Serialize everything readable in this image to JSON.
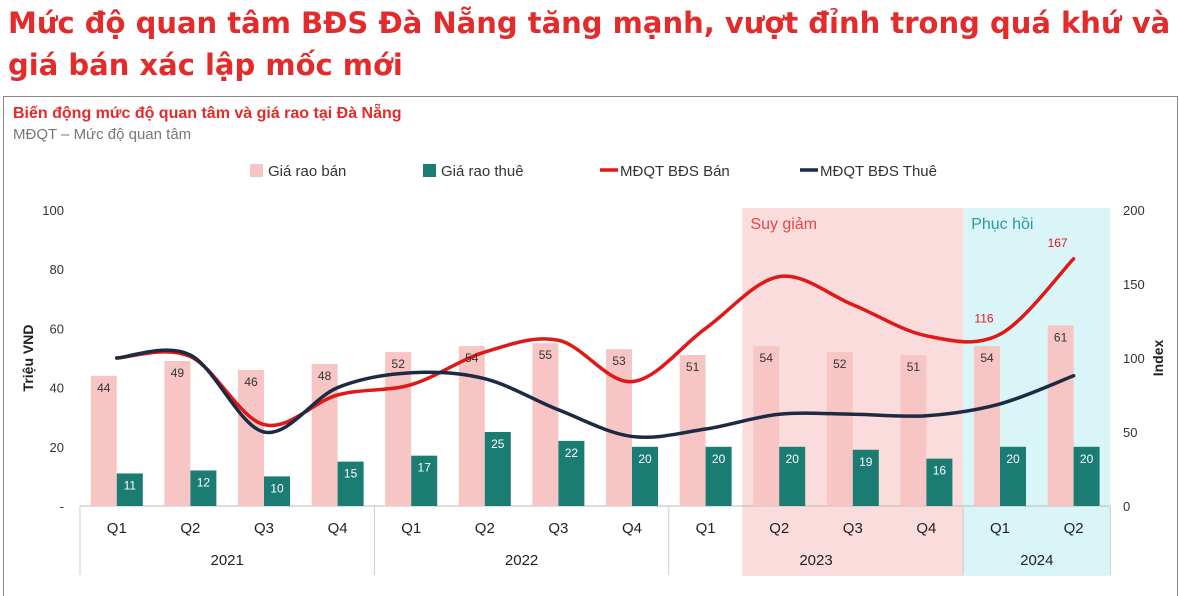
{
  "headline": "Mức độ quan tâm BĐS Đà Nẵng tăng mạnh, vượt đỉnh trong quá khứ và giá bán xác lập mốc mới",
  "chart_title": "Biến động mức độ quan tâm và giá rao tại Đà Nẵng",
  "chart_caption": "MĐQT – Mức độ quan tâm",
  "colors": {
    "sale_bar": "#f7c5c3",
    "rent_bar": "#1a7c72",
    "sale_line": "#e01818",
    "rent_line": "#1c2a44",
    "decline_zone": "#fbdcdc",
    "recovery_zone": "#d9f5f7"
  },
  "chart_data": {
    "type": "bar+line",
    "categories": [
      "Q1",
      "Q2",
      "Q3",
      "Q4",
      "Q1",
      "Q2",
      "Q3",
      "Q4",
      "Q1",
      "Q2",
      "Q3",
      "Q4",
      "Q1",
      "Q2"
    ],
    "years": [
      {
        "label": "2021",
        "start": 0,
        "end": 3
      },
      {
        "label": "2022",
        "start": 4,
        "end": 7
      },
      {
        "label": "2023",
        "start": 8,
        "end": 11
      },
      {
        "label": "2024",
        "start": 12,
        "end": 13
      }
    ],
    "series": [
      {
        "name": "Giá rao bán",
        "type": "bar",
        "axis": "left",
        "values": [
          44,
          49,
          46,
          48,
          52,
          54,
          55,
          53,
          51,
          54,
          52,
          51,
          54,
          61
        ]
      },
      {
        "name": "Giá rao thuê",
        "type": "bar",
        "axis": "left",
        "values": [
          11,
          12,
          10,
          15,
          17,
          25,
          22,
          20,
          20,
          20,
          19,
          16,
          20,
          20
        ]
      },
      {
        "name": "MĐQT BĐS Bán",
        "type": "line",
        "axis": "right",
        "values": [
          100,
          101,
          55,
          75,
          82,
          104,
          112,
          84,
          120,
          155,
          136,
          115,
          116,
          167
        ]
      },
      {
        "name": "MĐQT BĐS Thuê",
        "type": "line",
        "axis": "right",
        "values": [
          100,
          102,
          50,
          80,
          90,
          86,
          65,
          47,
          52,
          62,
          62,
          61,
          69,
          88
        ]
      }
    ],
    "left_axis": {
      "label": "Triệu VND",
      "min": 0,
      "max": 100,
      "ticks": [
        "-",
        "20",
        "40",
        "60",
        "80",
        "100"
      ]
    },
    "right_axis": {
      "label": "Index",
      "min": 0,
      "max": 200,
      "ticks": [
        "0",
        "50",
        "100",
        "150",
        "200"
      ]
    },
    "zones": [
      {
        "label": "Suy giảm",
        "start": 9,
        "end": 11
      },
      {
        "label": "Phục hồi",
        "start": 12,
        "end": 13
      }
    ],
    "point_labels": [
      {
        "series": 2,
        "index": 12,
        "text": "116"
      },
      {
        "series": 2,
        "index": 13,
        "text": "167"
      }
    ]
  }
}
